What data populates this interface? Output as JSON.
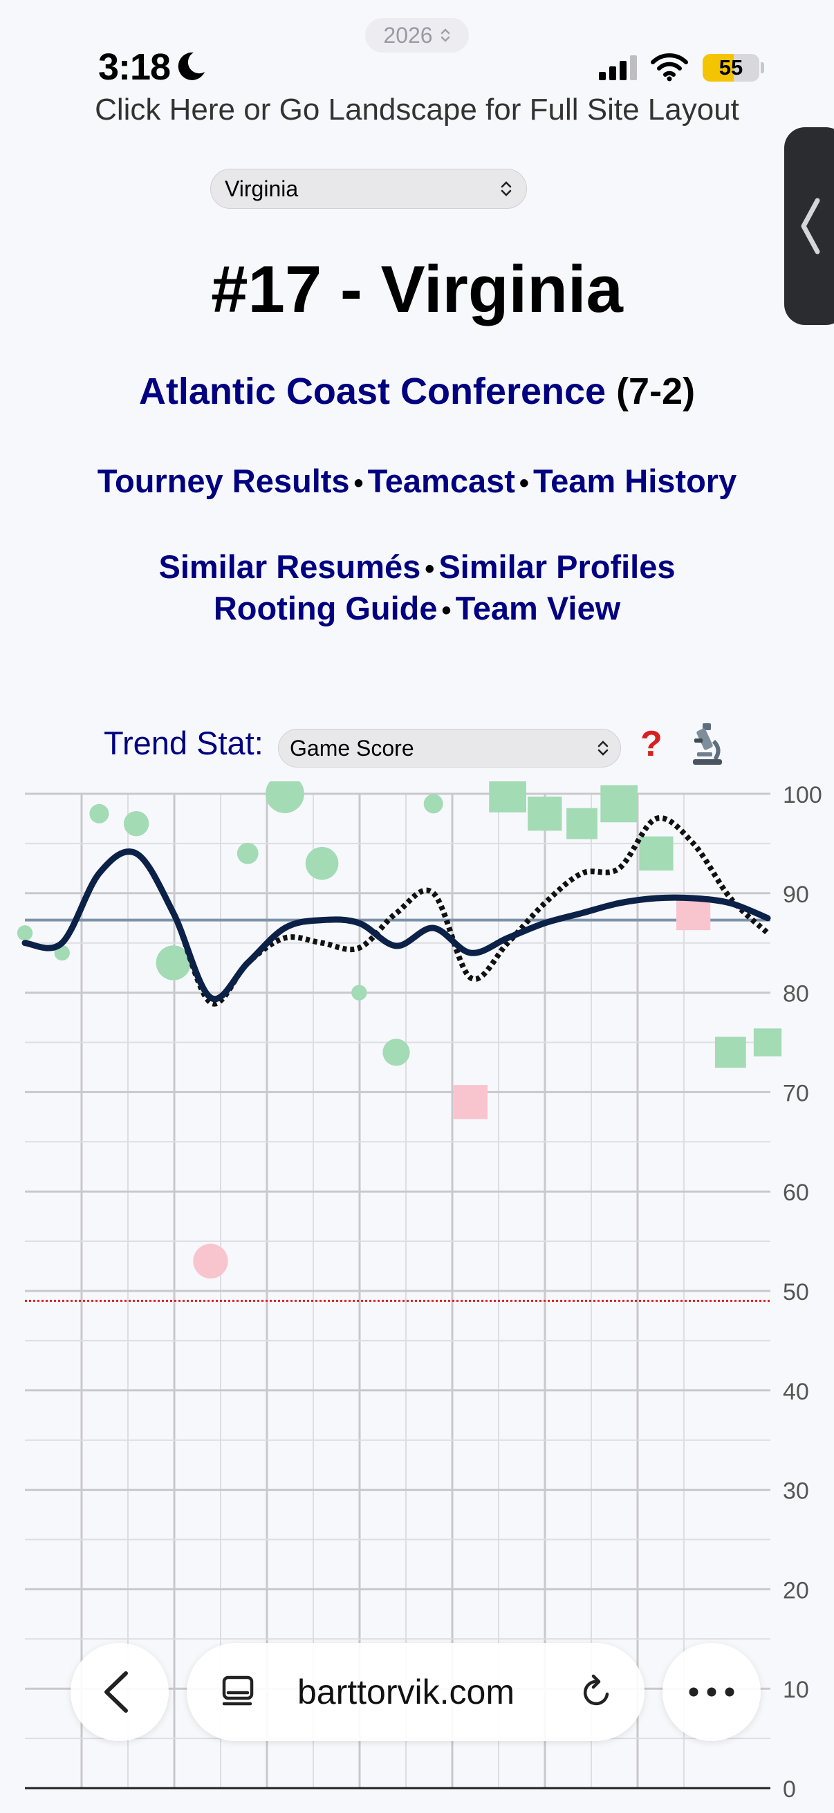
{
  "status_bar": {
    "year": "2026",
    "time": "3:18",
    "battery": "55",
    "battery_level": 0.55
  },
  "banner": {
    "full_site": "Click Here or Go Landscape for Full Site Layout"
  },
  "team_select": {
    "value": "Virginia"
  },
  "header": {
    "title": "#17 - Virginia",
    "conference": "Atlantic Coast Conference",
    "record": "(7-2)"
  },
  "links": {
    "row1": [
      "Tourney Results",
      "Teamcast",
      "Team History"
    ],
    "row2": [
      "Similar Resumés",
      "Similar Profiles"
    ],
    "row3": [
      "Rooting Guide",
      "Team View"
    ]
  },
  "trend": {
    "label": "Trend Stat:",
    "selected": "Game Score"
  },
  "chart_data": {
    "type": "scatter",
    "ylim": [
      0,
      100
    ],
    "y_ticks": [
      "100",
      "90",
      "80",
      "70",
      "60",
      "50",
      "40",
      "30",
      "20",
      "10",
      "0"
    ],
    "grid": true,
    "reference_line_dashed": 49,
    "average_line": 87.3,
    "colors": {
      "win": "#a3dbb4",
      "loss": "#f8c5cf",
      "trend": "#0b2147",
      "dotted": "#111111",
      "average": "#7e93a8",
      "reference": "#e02020"
    },
    "games": [
      {
        "game": 0,
        "score": 86,
        "result": "W",
        "shape": "circle",
        "size": 0.8
      },
      {
        "game": 1,
        "score": 84,
        "result": "W",
        "shape": "circle",
        "size": 0.8
      },
      {
        "game": 2,
        "score": 98,
        "result": "W",
        "shape": "circle",
        "size": 1.0
      },
      {
        "game": 3,
        "score": 97,
        "result": "W",
        "shape": "circle",
        "size": 1.3
      },
      {
        "game": 4,
        "score": 83,
        "result": "W",
        "shape": "circle",
        "size": 1.8
      },
      {
        "game": 5,
        "score": 53,
        "result": "L",
        "shape": "circle",
        "size": 1.8
      },
      {
        "game": 6,
        "score": 94,
        "result": "W",
        "shape": "circle",
        "size": 1.1
      },
      {
        "game": 7,
        "score": 100,
        "result": "W",
        "shape": "circle",
        "size": 2.0
      },
      {
        "game": 8,
        "score": 93,
        "result": "W",
        "shape": "circle",
        "size": 1.7
      },
      {
        "game": 9,
        "score": 80,
        "result": "W",
        "shape": "circle",
        "size": 0.8
      },
      {
        "game": 10,
        "score": 74,
        "result": "W",
        "shape": "circle",
        "size": 1.4
      },
      {
        "game": 11,
        "score": 99,
        "result": "W",
        "shape": "circle",
        "size": 1.0
      },
      {
        "game": 12,
        "score": 69,
        "result": "L",
        "shape": "square",
        "size": 1.1
      },
      {
        "game": 13,
        "score": 100,
        "result": "W",
        "shape": "square",
        "size": 1.2
      },
      {
        "game": 14,
        "score": 98,
        "result": "W",
        "shape": "square",
        "size": 1.1
      },
      {
        "game": 15,
        "score": 97,
        "result": "W",
        "shape": "square",
        "size": 1.0
      },
      {
        "game": 16,
        "score": 99,
        "result": "W",
        "shape": "square",
        "size": 1.2
      },
      {
        "game": 17,
        "score": 94,
        "result": "W",
        "shape": "square",
        "size": 1.1
      },
      {
        "game": 18,
        "score": 88,
        "result": "L",
        "shape": "square",
        "size": 1.1
      },
      {
        "game": 19,
        "score": 74,
        "result": "W",
        "shape": "square",
        "size": 1.0
      },
      {
        "game": 20,
        "score": 75,
        "result": "W",
        "shape": "square",
        "size": 0.9
      }
    ],
    "trend_solid": [
      [
        0,
        85
      ],
      [
        1,
        85
      ],
      [
        2,
        92
      ],
      [
        3,
        94
      ],
      [
        4,
        88
      ],
      [
        5,
        79.5
      ],
      [
        6,
        83
      ],
      [
        7,
        86.5
      ],
      [
        8,
        87.3
      ],
      [
        9,
        87
      ],
      [
        10,
        84.7
      ],
      [
        11,
        86.5
      ],
      [
        12,
        84
      ],
      [
        13,
        85.5
      ],
      [
        14,
        87
      ],
      [
        15,
        88
      ],
      [
        16,
        89
      ],
      [
        17,
        89.5
      ],
      [
        18,
        89.5
      ],
      [
        19,
        89
      ],
      [
        20,
        87.5
      ]
    ],
    "trend_dotted": [
      [
        0,
        85
      ],
      [
        1,
        85
      ],
      [
        2,
        92
      ],
      [
        3,
        94
      ],
      [
        4,
        88
      ],
      [
        5,
        79
      ],
      [
        6,
        83
      ],
      [
        7,
        85.5
      ],
      [
        8,
        85
      ],
      [
        9,
        84.5
      ],
      [
        10,
        88
      ],
      [
        11,
        90
      ],
      [
        12,
        81.5
      ],
      [
        13,
        85
      ],
      [
        14,
        89
      ],
      [
        15,
        92
      ],
      [
        16,
        92.5
      ],
      [
        17,
        97.5
      ],
      [
        18,
        95
      ],
      [
        19,
        89.5
      ],
      [
        20,
        86
      ]
    ]
  },
  "browser": {
    "url": "barttorvik.com"
  }
}
